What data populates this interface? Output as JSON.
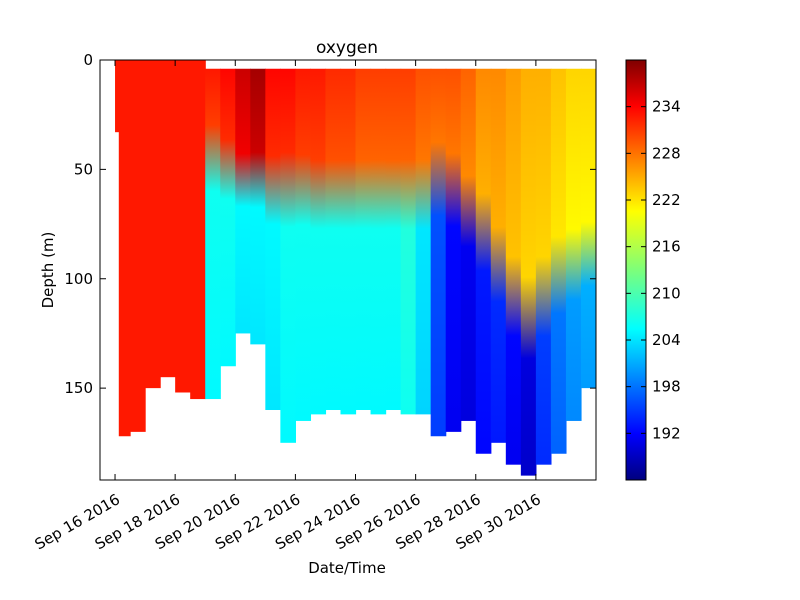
{
  "chart_data": {
    "type": "heatmap",
    "title": "oxygen",
    "xlabel": "Date/Time",
    "ylabel": "Depth (m)",
    "x_tick_labels": [
      "Sep 16 2016",
      "Sep 18 2016",
      "Sep 20 2016",
      "Sep 22 2016",
      "Sep 24 2016",
      "Sep 26 2016",
      "Sep 28 2016",
      "Sep 30 2016"
    ],
    "x_ticks": [
      "2016-09-16",
      "2016-09-18",
      "2016-09-20",
      "2016-09-22",
      "2016-09-24",
      "2016-09-26",
      "2016-09-28",
      "2016-09-30"
    ],
    "xlim": [
      "2016-09-15T12:00",
      "2016-10-02T00:00"
    ],
    "y_ticks": [
      0,
      50,
      100,
      150
    ],
    "ylim": [
      192,
      0
    ],
    "y_inverted": true,
    "colorbar": {
      "colormap": "jet",
      "range": [
        186,
        240
      ],
      "ticks": [
        192,
        198,
        204,
        210,
        216,
        222,
        228,
        234
      ]
    },
    "profiles": [
      {
        "time": "2016-09-16T00:00",
        "max_depth": 33,
        "oxycline_depth": null,
        "surface_oxygen": 232,
        "deep_oxygen": 232
      },
      {
        "time": "2016-09-16T03:00",
        "max_depth": 172,
        "oxycline_depth": null,
        "surface_oxygen": 232,
        "deep_oxygen": 232
      },
      {
        "time": "2016-09-16T12:00",
        "max_depth": 170,
        "oxycline_depth": null,
        "surface_oxygen": 232,
        "deep_oxygen": 232
      },
      {
        "time": "2016-09-17T00:00",
        "max_depth": 150,
        "oxycline_depth": null,
        "surface_oxygen": 232,
        "deep_oxygen": 232
      },
      {
        "time": "2016-09-17T12:00",
        "max_depth": 145,
        "oxycline_depth": null,
        "surface_oxygen": 232,
        "deep_oxygen": 232
      },
      {
        "time": "2016-09-18T00:00",
        "max_depth": 152,
        "oxycline_depth": null,
        "surface_oxygen": 232,
        "deep_oxygen": 232
      },
      {
        "time": "2016-09-18T12:00",
        "max_depth": 155,
        "oxycline_depth": null,
        "surface_oxygen": 232,
        "deep_oxygen": 232
      },
      {
        "time": "2016-09-19T00:00",
        "max_depth": 155,
        "oxycline_depth": 45,
        "surface_oxygen": 232,
        "deep_oxygen": 206
      },
      {
        "time": "2016-09-19T12:00",
        "max_depth": 140,
        "oxycline_depth": 50,
        "surface_oxygen": 233,
        "deep_oxygen": 206
      },
      {
        "time": "2016-09-20T00:00",
        "max_depth": 125,
        "oxycline_depth": 55,
        "surface_oxygen": 236,
        "deep_oxygen": 205
      },
      {
        "time": "2016-09-20T12:00",
        "max_depth": 130,
        "oxycline_depth": 55,
        "surface_oxygen": 238,
        "deep_oxygen": 205
      },
      {
        "time": "2016-09-21T00:00",
        "max_depth": 160,
        "oxycline_depth": 60,
        "surface_oxygen": 233,
        "deep_oxygen": 205
      },
      {
        "time": "2016-09-21T12:00",
        "max_depth": 175,
        "oxycline_depth": 60,
        "surface_oxygen": 233,
        "deep_oxygen": 206
      },
      {
        "time": "2016-09-22T00:00",
        "max_depth": 165,
        "oxycline_depth": 60,
        "surface_oxygen": 232,
        "deep_oxygen": 206
      },
      {
        "time": "2016-09-22T12:00",
        "max_depth": 162,
        "oxycline_depth": 62,
        "surface_oxygen": 232,
        "deep_oxygen": 206
      },
      {
        "time": "2016-09-23T00:00",
        "max_depth": 160,
        "oxycline_depth": 62,
        "surface_oxygen": 231,
        "deep_oxygen": 206
      },
      {
        "time": "2016-09-23T12:00",
        "max_depth": 162,
        "oxycline_depth": 62,
        "surface_oxygen": 231,
        "deep_oxygen": 206
      },
      {
        "time": "2016-09-24T00:00",
        "max_depth": 160,
        "oxycline_depth": 62,
        "surface_oxygen": 230,
        "deep_oxygen": 206
      },
      {
        "time": "2016-09-24T12:00",
        "max_depth": 162,
        "oxycline_depth": 62,
        "surface_oxygen": 230,
        "deep_oxygen": 206
      },
      {
        "time": "2016-09-25T00:00",
        "max_depth": 160,
        "oxycline_depth": 62,
        "surface_oxygen": 230,
        "deep_oxygen": 206
      },
      {
        "time": "2016-09-25T12:00",
        "max_depth": 162,
        "oxycline_depth": 62,
        "surface_oxygen": 230,
        "deep_oxygen": 207
      },
      {
        "time": "2016-09-26T00:00",
        "max_depth": 162,
        "oxycline_depth": 62,
        "surface_oxygen": 229,
        "deep_oxygen": 204
      },
      {
        "time": "2016-09-26T12:00",
        "max_depth": 172,
        "oxycline_depth": 55,
        "surface_oxygen": 229,
        "deep_oxygen": 196
      },
      {
        "time": "2016-09-27T00:00",
        "max_depth": 170,
        "oxycline_depth": 60,
        "surface_oxygen": 229,
        "deep_oxygen": 192
      },
      {
        "time": "2016-09-27T12:00",
        "max_depth": 165,
        "oxycline_depth": 70,
        "surface_oxygen": 228,
        "deep_oxygen": 191
      },
      {
        "time": "2016-09-28T00:00",
        "max_depth": 180,
        "oxycline_depth": 80,
        "surface_oxygen": 226,
        "deep_oxygen": 193
      },
      {
        "time": "2016-09-28T12:00",
        "max_depth": 175,
        "oxycline_depth": 95,
        "surface_oxygen": 226,
        "deep_oxygen": 194
      },
      {
        "time": "2016-09-29T00:00",
        "max_depth": 185,
        "oxycline_depth": 110,
        "surface_oxygen": 225,
        "deep_oxygen": 192
      },
      {
        "time": "2016-09-29T12:00",
        "max_depth": 190,
        "oxycline_depth": 120,
        "surface_oxygen": 224,
        "deep_oxygen": 190
      },
      {
        "time": "2016-09-30T00:00",
        "max_depth": 185,
        "oxycline_depth": 110,
        "surface_oxygen": 224,
        "deep_oxygen": 195
      },
      {
        "time": "2016-09-30T12:00",
        "max_depth": 180,
        "oxycline_depth": 100,
        "surface_oxygen": 223,
        "deep_oxygen": 198
      },
      {
        "time": "2016-10-01T00:00",
        "max_depth": 165,
        "oxycline_depth": 95,
        "surface_oxygen": 222,
        "deep_oxygen": 200
      },
      {
        "time": "2016-10-01T12:00",
        "max_depth": 150,
        "oxycline_depth": 90,
        "surface_oxygen": 222,
        "deep_oxygen": 201
      }
    ]
  }
}
